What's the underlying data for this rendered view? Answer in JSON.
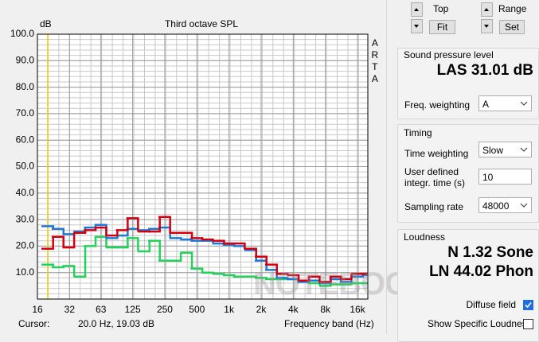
{
  "chart_data": {
    "type": "step",
    "title": "Third octave SPL",
    "y_unit": "dB",
    "side_label": "ARTA",
    "xlabel": "Frequency band (Hz)",
    "log_x": true,
    "x": [
      20,
      25,
      31.5,
      40,
      50,
      63,
      80,
      100,
      125,
      160,
      200,
      250,
      315,
      400,
      500,
      630,
      800,
      1000,
      1250,
      1600,
      2000,
      2500,
      3150,
      4000,
      5000,
      6300,
      8000,
      10000,
      12500,
      16000,
      20000
    ],
    "series": [
      {
        "color": "#d4000f",
        "values": [
          19,
          23.5,
          19.5,
          25,
          26,
          27,
          24,
          26,
          30.5,
          25.5,
          25.5,
          31,
          25,
          25,
          23,
          22.5,
          22,
          21,
          21,
          19,
          16,
          13,
          9.5,
          9,
          7,
          8.5,
          6.5,
          8.5,
          7.5,
          9.5,
          9.5
        ]
      },
      {
        "color": "#1e78d7",
        "values": [
          27.5,
          26.5,
          24.5,
          25.5,
          27,
          28,
          23,
          24,
          26.5,
          26,
          26.5,
          27,
          23,
          22.5,
          22,
          22,
          21,
          20.5,
          20,
          18.5,
          14.5,
          11,
          8,
          7.5,
          6.5,
          7,
          6,
          7.5,
          6.5,
          8.5,
          9
        ]
      },
      {
        "color": "#22d35a",
        "values": [
          13,
          12,
          12.5,
          8.5,
          20,
          23.5,
          19.5,
          19.5,
          23,
          18,
          22,
          14.5,
          14.5,
          17.5,
          11.5,
          10,
          9.5,
          9,
          8.5,
          8.5,
          8,
          7.5,
          7.5,
          7.5,
          6.5,
          6,
          5,
          5.5,
          5.5,
          6,
          6
        ]
      }
    ],
    "xlim": [
      16,
      20000
    ],
    "xticks": [
      16,
      32,
      63,
      125,
      250,
      500,
      {
        "value": 1000,
        "label": "1k"
      },
      {
        "value": 2000,
        "label": "2k"
      },
      {
        "value": 4000,
        "label": "4k"
      },
      {
        "value": 8000,
        "label": "8k"
      },
      {
        "value": 16000,
        "label": "16k"
      }
    ],
    "ylim": [
      0,
      100
    ],
    "yticks": [
      {
        "value": 10,
        "label": "10.0"
      },
      {
        "value": 20,
        "label": "20.0"
      },
      {
        "value": 30,
        "label": "30.0"
      },
      {
        "value": 40,
        "label": "40.0"
      },
      {
        "value": 50,
        "label": "50.0"
      },
      {
        "value": 60,
        "label": "60.0"
      },
      {
        "value": 70,
        "label": "70.0"
      },
      {
        "value": 80,
        "label": "80.0"
      },
      {
        "value": 90,
        "label": "90.0"
      },
      {
        "value": 100,
        "label": "100.0"
      }
    ],
    "grid": true,
    "cursor": {
      "x": 20,
      "color": "#e8d000",
      "label": "Cursor:",
      "readout": "20.0 Hz, 19.03 dB"
    }
  },
  "watermark": "NOTEBOOKCHECK",
  "controls": {
    "top_label": "Top",
    "fit_button": "Fit",
    "range_label": "Range",
    "set_button": "Set",
    "spl": {
      "title": "Sound pressure level",
      "reading": "LAS 31.01 dB",
      "weighting_label": "Freq. weighting",
      "weighting": "A"
    },
    "timing": {
      "title": "Timing",
      "time_weighting_label": "Time weighting",
      "time_weighting": "Slow",
      "integr_label": [
        "User defined",
        "integr. time (s)"
      ],
      "integr_time": "10",
      "sampling_label": "Sampling rate",
      "sampling_rate": "48000"
    },
    "loudness": {
      "title": "Loudness",
      "sone": "N 1.32 Sone",
      "phon": "LN 44.02 Phon",
      "diffuse": "Diffuse field",
      "diffuse_checked": true,
      "specific": "Show Specific Loudness",
      "specific_checked": false
    }
  }
}
